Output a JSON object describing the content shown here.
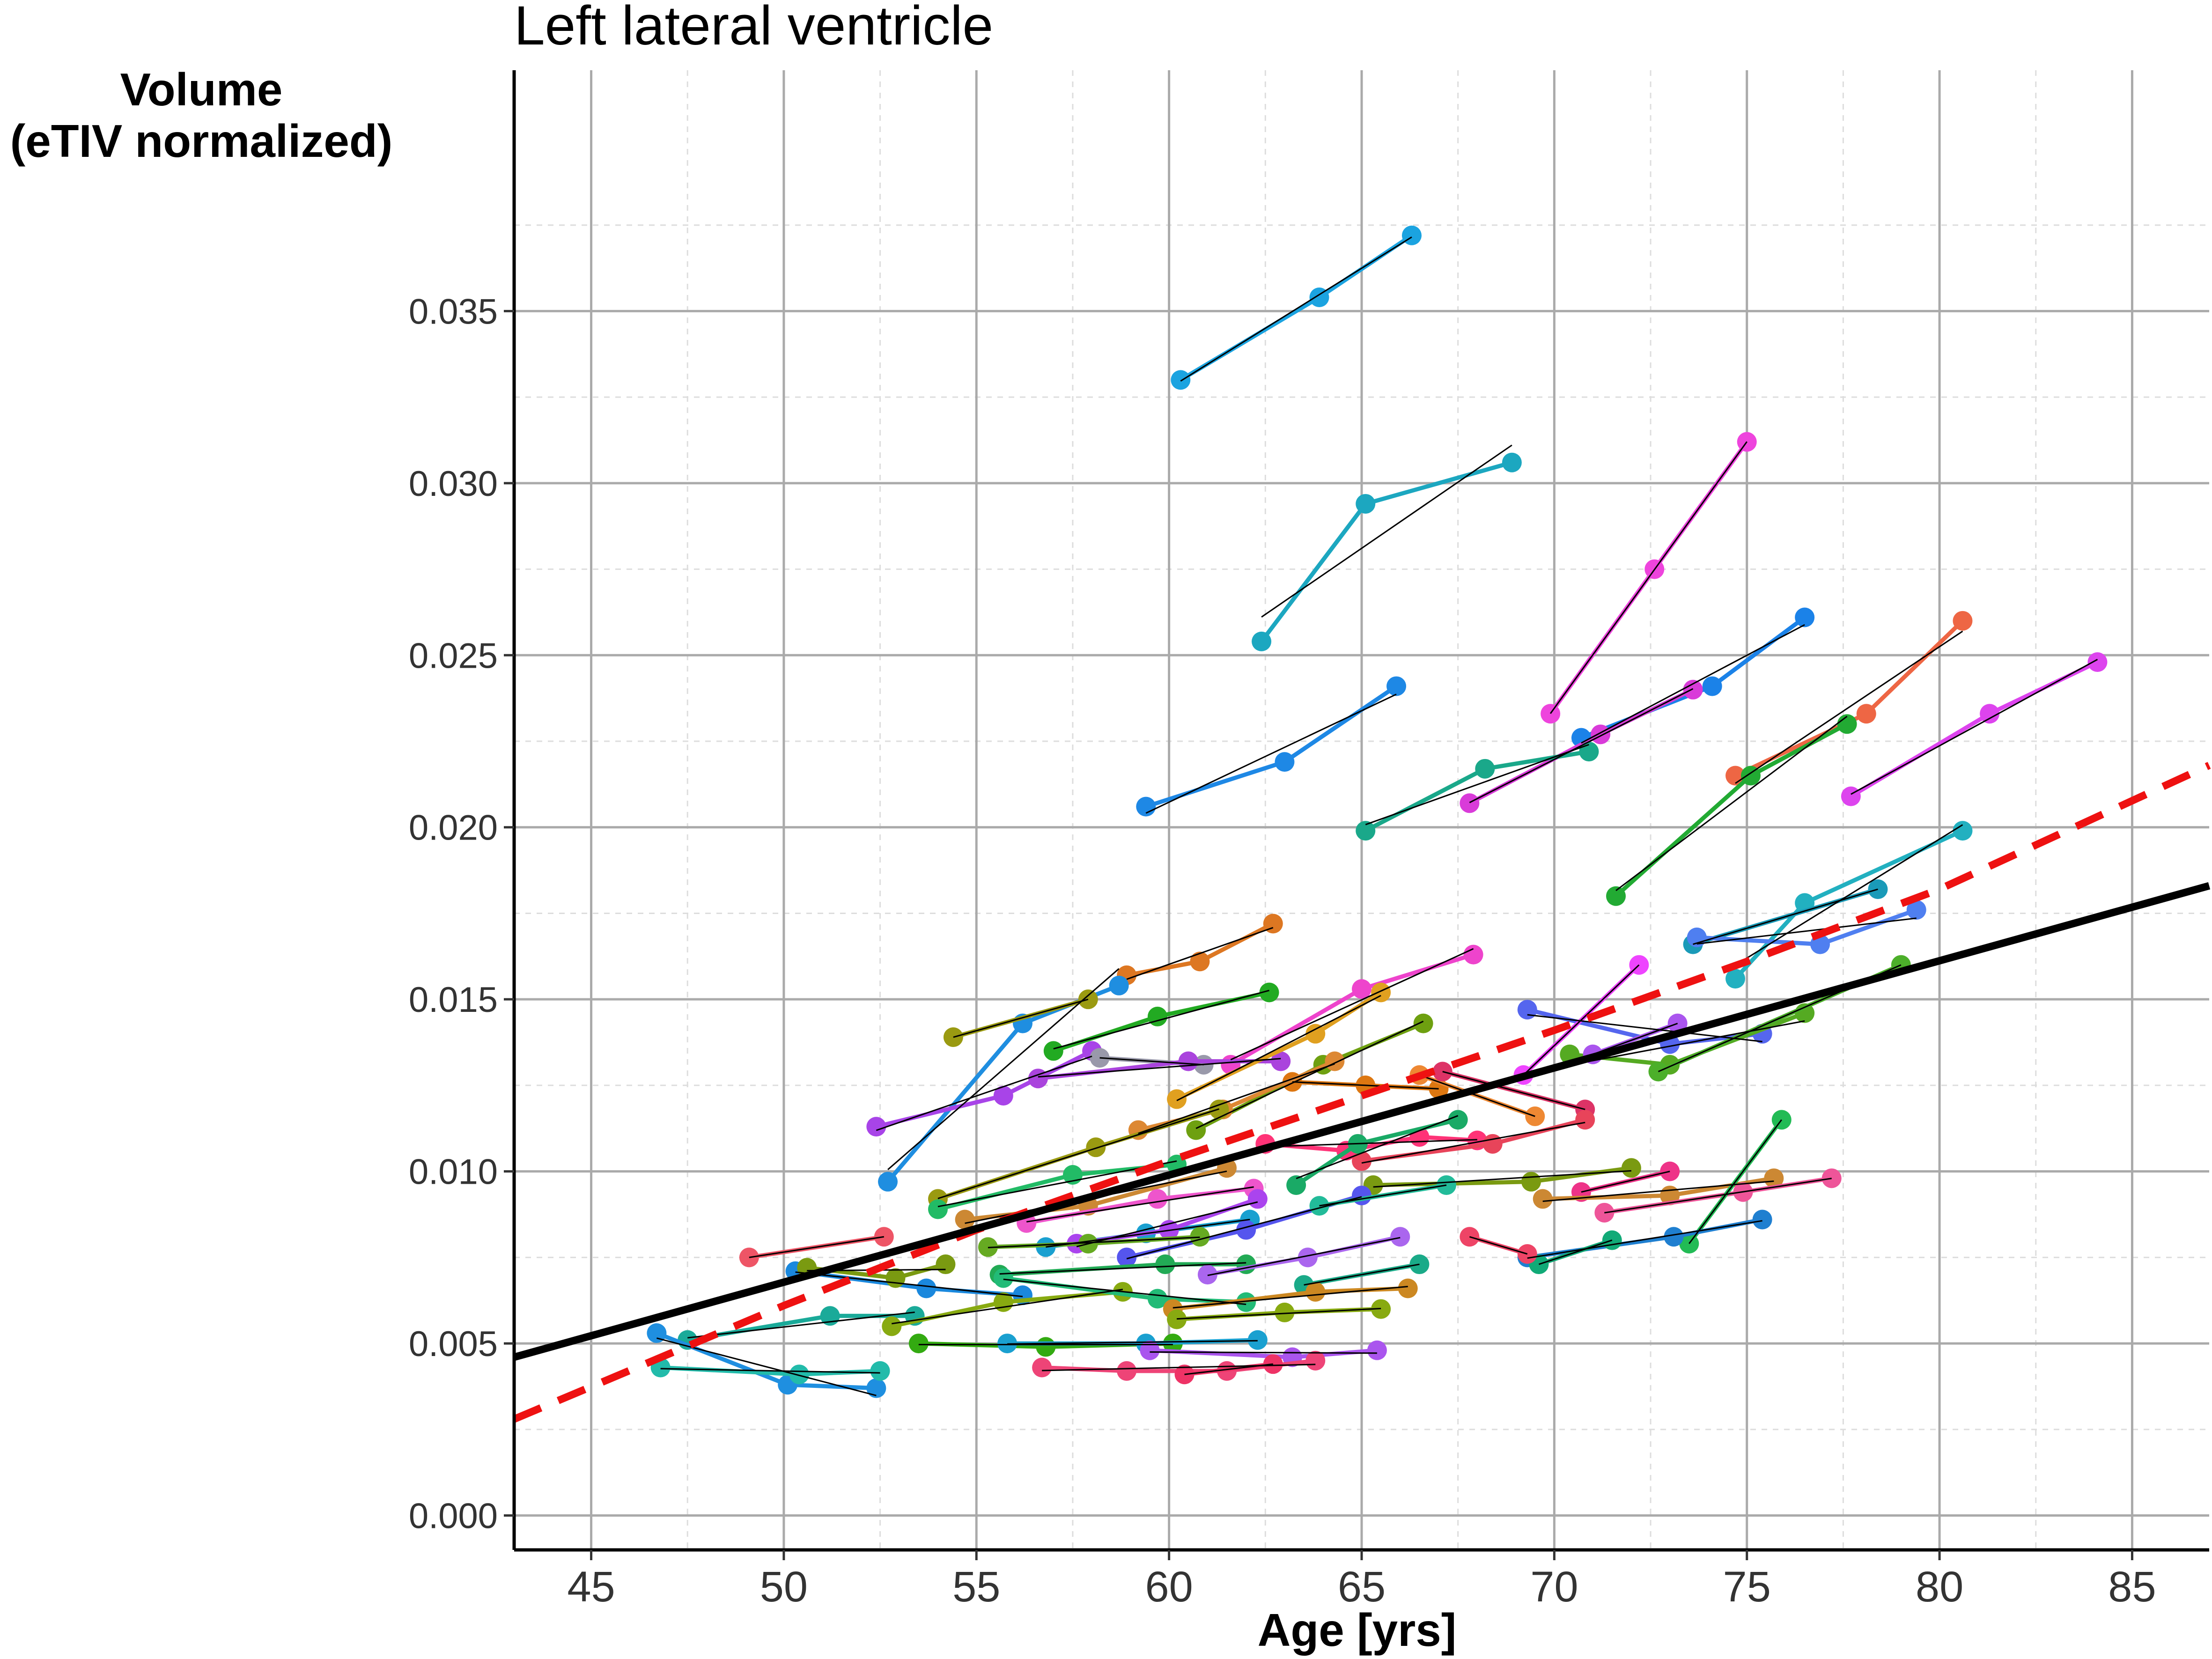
{
  "chart_data": {
    "type": "line",
    "title": "Left lateral ventricle",
    "ylabel_line1": "Volume",
    "ylabel_line2": "(eTIV normalized)",
    "xlabel": "Age [yrs]",
    "xlim": [
      43,
      87
    ],
    "ylim": [
      -0.001,
      0.042
    ],
    "x_ticks": [
      45,
      50,
      55,
      60,
      65,
      70,
      75,
      80,
      85
    ],
    "x_tick_labels": [
      "45",
      "50",
      "55",
      "60",
      "65",
      "70",
      "75",
      "80",
      "85"
    ],
    "y_ticks": [
      0.0,
      0.005,
      0.01,
      0.015,
      0.02,
      0.025,
      0.03,
      0.035
    ],
    "y_tick_labels": [
      "0.000",
      "0.005",
      "0.010",
      "0.015",
      "0.020",
      "0.025",
      "0.030",
      "0.035"
    ],
    "grid": true,
    "colors": {
      "population_fit": "#000000",
      "quadratic_fit": "#ee1111",
      "subject_fit": "#000000",
      "grid_major": "#aaaaaa",
      "grid_minor": "#dddddd"
    },
    "population_fit": {
      "x": [
        43,
        87
      ],
      "y": [
        0.0046,
        0.0183
      ]
    },
    "quadratic_fit": {
      "x": [
        43,
        50,
        55,
        60,
        65,
        70,
        75,
        80,
        87
      ],
      "y": [
        0.0028,
        0.0061,
        0.0083,
        0.0103,
        0.0122,
        0.0141,
        0.0161,
        0.0182,
        0.0218
      ]
    },
    "series": [
      {
        "color": "#1ba3e0",
        "x": [
          60.3,
          63.9,
          66.3
        ],
        "y": [
          0.033,
          0.0354,
          0.0372
        ]
      },
      {
        "color": "#1ca7c0",
        "x": [
          62.4,
          65.1,
          68.9
        ],
        "y": [
          0.0254,
          0.0294,
          0.0306
        ]
      },
      {
        "color": "#ee44dd",
        "x": [
          69.9,
          72.6,
          75.0
        ],
        "y": [
          0.0233,
          0.0275,
          0.0312
        ]
      },
      {
        "color": "#1e88e5",
        "x": [
          59.4,
          63.0,
          65.9
        ],
        "y": [
          0.0206,
          0.0219,
          0.0241
        ]
      },
      {
        "color": "#1b82e8",
        "x": [
          70.7,
          74.1,
          76.5
        ],
        "y": [
          0.0226,
          0.0241,
          0.0261
        ]
      },
      {
        "color": "#ee6644",
        "x": [
          74.7,
          78.1,
          80.6
        ],
        "y": [
          0.0215,
          0.0233,
          0.026
        ]
      },
      {
        "color": "#dd44ee",
        "x": [
          77.7,
          81.3,
          84.1
        ],
        "y": [
          0.0209,
          0.0233,
          0.0248
        ]
      },
      {
        "color": "#d93bd9",
        "x": [
          67.8,
          71.2,
          73.6
        ],
        "y": [
          0.0207,
          0.0227,
          0.024
        ]
      },
      {
        "color": "#1aa88a",
        "x": [
          65.1,
          68.2,
          70.9
        ],
        "y": [
          0.0199,
          0.0217,
          0.0222
        ]
      },
      {
        "color": "#22aa33",
        "x": [
          71.6,
          75.1,
          77.6
        ],
        "y": [
          0.018,
          0.0215,
          0.023
        ]
      },
      {
        "color": "#22b0c0",
        "x": [
          74.7,
          76.5,
          80.6
        ],
        "y": [
          0.0156,
          0.0178,
          0.0199
        ]
      },
      {
        "color": "#1a9ab8",
        "x": [
          73.6,
          78.4
        ],
        "y": [
          0.0166,
          0.0182
        ]
      },
      {
        "color": "#4f7ff0",
        "x": [
          73.7,
          76.9,
          79.4
        ],
        "y": [
          0.0168,
          0.0166,
          0.0176
        ]
      },
      {
        "color": "#dd7722",
        "x": [
          58.9,
          60.8,
          62.7
        ],
        "y": [
          0.0157,
          0.0161,
          0.0172
        ]
      },
      {
        "color": "#1f8ee0",
        "x": [
          52.7,
          56.2,
          58.7
        ],
        "y": [
          0.0097,
          0.0143,
          0.0154
        ]
      },
      {
        "color": "#9a9a11",
        "x": [
          54.4,
          57.9
        ],
        "y": [
          0.0139,
          0.015
        ]
      },
      {
        "color": "#22aa22",
        "x": [
          57.0,
          59.7,
          62.6
        ],
        "y": [
          0.0135,
          0.0145,
          0.0152
        ]
      },
      {
        "color": "#ee44cc",
        "x": [
          61.6,
          65.0,
          67.9
        ],
        "y": [
          0.0131,
          0.0153,
          0.0163
        ]
      },
      {
        "color": "#a844e8",
        "x": [
          52.4,
          55.7,
          58.0
        ],
        "y": [
          0.0113,
          0.0122,
          0.0135
        ]
      },
      {
        "color": "#9999aa",
        "x": [
          58.2,
          60.9
        ],
        "y": [
          0.0133,
          0.0131
        ]
      },
      {
        "color": "#aa44dd",
        "x": [
          56.6,
          60.5,
          62.9
        ],
        "y": [
          0.0127,
          0.0132,
          0.0132
        ]
      },
      {
        "color": "#e0a020",
        "x": [
          60.2,
          63.8,
          65.5
        ],
        "y": [
          0.0121,
          0.014,
          0.0152
        ]
      },
      {
        "color": "#6ea010",
        "x": [
          60.7,
          64.0,
          66.6
        ],
        "y": [
          0.0112,
          0.0131,
          0.0143
        ]
      },
      {
        "color": "#dd7711",
        "x": [
          63.2,
          65.1,
          67.0
        ],
        "y": [
          0.0126,
          0.0125,
          0.0124
        ]
      },
      {
        "color": "#dd8833",
        "x": [
          59.2,
          61.4,
          64.3
        ],
        "y": [
          0.0112,
          0.0118,
          0.0132
        ]
      },
      {
        "color": "#5566ee",
        "x": [
          69.3,
          73.0,
          75.4
        ],
        "y": [
          0.0147,
          0.0137,
          0.014
        ]
      },
      {
        "color": "#55aa22",
        "x": [
          70.4,
          73.0,
          76.5
        ],
        "y": [
          0.0134,
          0.0131,
          0.0146
        ]
      },
      {
        "color": "#4caf2a",
        "x": [
          72.7,
          79.0
        ],
        "y": [
          0.0129,
          0.016
        ]
      },
      {
        "color": "#ee44ff",
        "x": [
          69.2,
          72.2
        ],
        "y": [
          0.0128,
          0.016
        ]
      },
      {
        "color": "#aa55ee",
        "x": [
          71.0,
          73.2
        ],
        "y": [
          0.0134,
          0.0143
        ]
      },
      {
        "color": "#ee8833",
        "x": [
          66.5,
          69.5
        ],
        "y": [
          0.0128,
          0.0116
        ]
      },
      {
        "color": "#dd3366",
        "x": [
          67.1,
          70.8
        ],
        "y": [
          0.0129,
          0.0118
        ]
      },
      {
        "color": "#ff3377",
        "x": [
          62.5,
          64.6,
          66.5,
          68.0
        ],
        "y": [
          0.0108,
          0.0106,
          0.011,
          0.0109
        ]
      },
      {
        "color": "#e8445a",
        "x": [
          65.0,
          68.4,
          70.8
        ],
        "y": [
          0.0103,
          0.0108,
          0.0115
        ]
      },
      {
        "color": "#1aaa66",
        "x": [
          63.3,
          64.9,
          67.5
        ],
        "y": [
          0.0096,
          0.0108,
          0.0115
        ]
      },
      {
        "color": "#7a9a11",
        "x": [
          65.3,
          69.4,
          72.0
        ],
        "y": [
          0.0096,
          0.0097,
          0.0101
        ]
      },
      {
        "color": "#ee3388",
        "x": [
          70.7,
          73.0
        ],
        "y": [
          0.0094,
          0.01
        ]
      },
      {
        "color": "#cc8833",
        "x": [
          69.7,
          73.0,
          75.7
        ],
        "y": [
          0.0092,
          0.0093,
          0.0098
        ]
      },
      {
        "color": "#ee5599",
        "x": [
          71.3,
          74.9,
          77.2
        ],
        "y": [
          0.0088,
          0.0094,
          0.0098
        ]
      },
      {
        "color": "#22bb55",
        "x": [
          73.5,
          75.9
        ],
        "y": [
          0.0079,
          0.0115
        ]
      },
      {
        "color": "#1f7fd0",
        "x": [
          69.3,
          73.1,
          75.4
        ],
        "y": [
          0.0075,
          0.0081,
          0.0086
        ]
      },
      {
        "color": "#11aa77",
        "x": [
          69.6,
          71.5
        ],
        "y": [
          0.0073,
          0.008
        ]
      },
      {
        "color": "#ee4466",
        "x": [
          67.8,
          69.3
        ],
        "y": [
          0.0081,
          0.0076
        ]
      },
      {
        "color": "#9a9a11",
        "x": [
          54.0,
          58.1,
          61.3
        ],
        "y": [
          0.0092,
          0.0107,
          0.0118
        ]
      },
      {
        "color": "#22bb66",
        "x": [
          54.0,
          57.5,
          60.2
        ],
        "y": [
          0.0089,
          0.0099,
          0.0102
        ]
      },
      {
        "color": "#cc8833",
        "x": [
          54.7,
          57.9,
          61.5
        ],
        "y": [
          0.0086,
          0.009,
          0.0101
        ]
      },
      {
        "color": "#ee5566",
        "x": [
          49.1,
          52.6
        ],
        "y": [
          0.0075,
          0.0081
        ]
      },
      {
        "color": "#ee55cc",
        "x": [
          56.3,
          59.7,
          62.2
        ],
        "y": [
          0.0085,
          0.0092,
          0.0095
        ]
      },
      {
        "color": "#1aa0d0",
        "x": [
          56.8,
          59.4,
          62.1
        ],
        "y": [
          0.0078,
          0.0082,
          0.0086
        ]
      },
      {
        "color": "#aa44ee",
        "x": [
          57.6,
          60.0,
          62.3
        ],
        "y": [
          0.0079,
          0.0083,
          0.0092
        ]
      },
      {
        "color": "#5555ee",
        "x": [
          58.9,
          62.0,
          65.0
        ],
        "y": [
          0.0075,
          0.0083,
          0.0093
        ]
      },
      {
        "color": "#22aa55",
        "x": [
          55.6,
          59.9,
          62.0
        ],
        "y": [
          0.007,
          0.0073,
          0.0073
        ]
      },
      {
        "color": "#aa66ee",
        "x": [
          61.0,
          63.6,
          66.0
        ],
        "y": [
          0.007,
          0.0075,
          0.0081
        ]
      },
      {
        "color": "#66aa22",
        "x": [
          55.3,
          57.9,
          60.8
        ],
        "y": [
          0.0078,
          0.0079,
          0.0081
        ]
      },
      {
        "color": "#1aaa88",
        "x": [
          63.5,
          66.5
        ],
        "y": [
          0.0067,
          0.0073
        ]
      },
      {
        "color": "#22bb99",
        "x": [
          63.9,
          67.2
        ],
        "y": [
          0.009,
          0.0096
        ]
      },
      {
        "color": "#1a88dd",
        "x": [
          50.3,
          53.7,
          56.2
        ],
        "y": [
          0.0071,
          0.0066,
          0.0064
        ]
      },
      {
        "color": "#7a9a11",
        "x": [
          50.6,
          52.9,
          54.2
        ],
        "y": [
          0.0072,
          0.0069,
          0.0073
        ]
      },
      {
        "color": "#1aaa99",
        "x": [
          47.5,
          51.2,
          53.4
        ],
        "y": [
          0.0051,
          0.0058,
          0.0058
        ]
      },
      {
        "color": "#88aa11",
        "x": [
          52.8,
          55.7,
          58.8
        ],
        "y": [
          0.0055,
          0.0062,
          0.0065
        ]
      },
      {
        "color": "#22bb77",
        "x": [
          55.7,
          59.7,
          62.0
        ],
        "y": [
          0.0069,
          0.0063,
          0.0062
        ]
      },
      {
        "color": "#cc8822",
        "x": [
          60.1,
          63.8,
          66.2
        ],
        "y": [
          0.006,
          0.0065,
          0.0066
        ]
      },
      {
        "color": "#88aa11",
        "x": [
          60.2,
          63.0,
          65.5
        ],
        "y": [
          0.0057,
          0.0059,
          0.006
        ]
      },
      {
        "color": "#33aa11",
        "x": [
          53.5,
          56.8,
          60.1
        ],
        "y": [
          0.005,
          0.0049,
          0.005
        ]
      },
      {
        "color": "#1f8fe0",
        "x": [
          46.7,
          50.1,
          52.4
        ],
        "y": [
          0.0053,
          0.0038,
          0.0037
        ]
      },
      {
        "color": "#22bbaa",
        "x": [
          46.8,
          50.4,
          52.5
        ],
        "y": [
          0.0043,
          0.0041,
          0.0042
        ]
      },
      {
        "color": "#1aa0d0",
        "x": [
          55.8,
          59.4,
          62.3
        ],
        "y": [
          0.005,
          0.005,
          0.0051
        ]
      },
      {
        "color": "#aa55ee",
        "x": [
          59.5,
          63.2,
          65.4
        ],
        "y": [
          0.0048,
          0.0046,
          0.0048
        ]
      },
      {
        "color": "#ee4477",
        "x": [
          56.7,
          58.9,
          61.5,
          63.8
        ],
        "y": [
          0.0043,
          0.0042,
          0.0042,
          0.0045
        ]
      },
      {
        "color": "#ee3366",
        "x": [
          60.4,
          62.7
        ],
        "y": [
          0.0041,
          0.0044
        ]
      }
    ]
  }
}
